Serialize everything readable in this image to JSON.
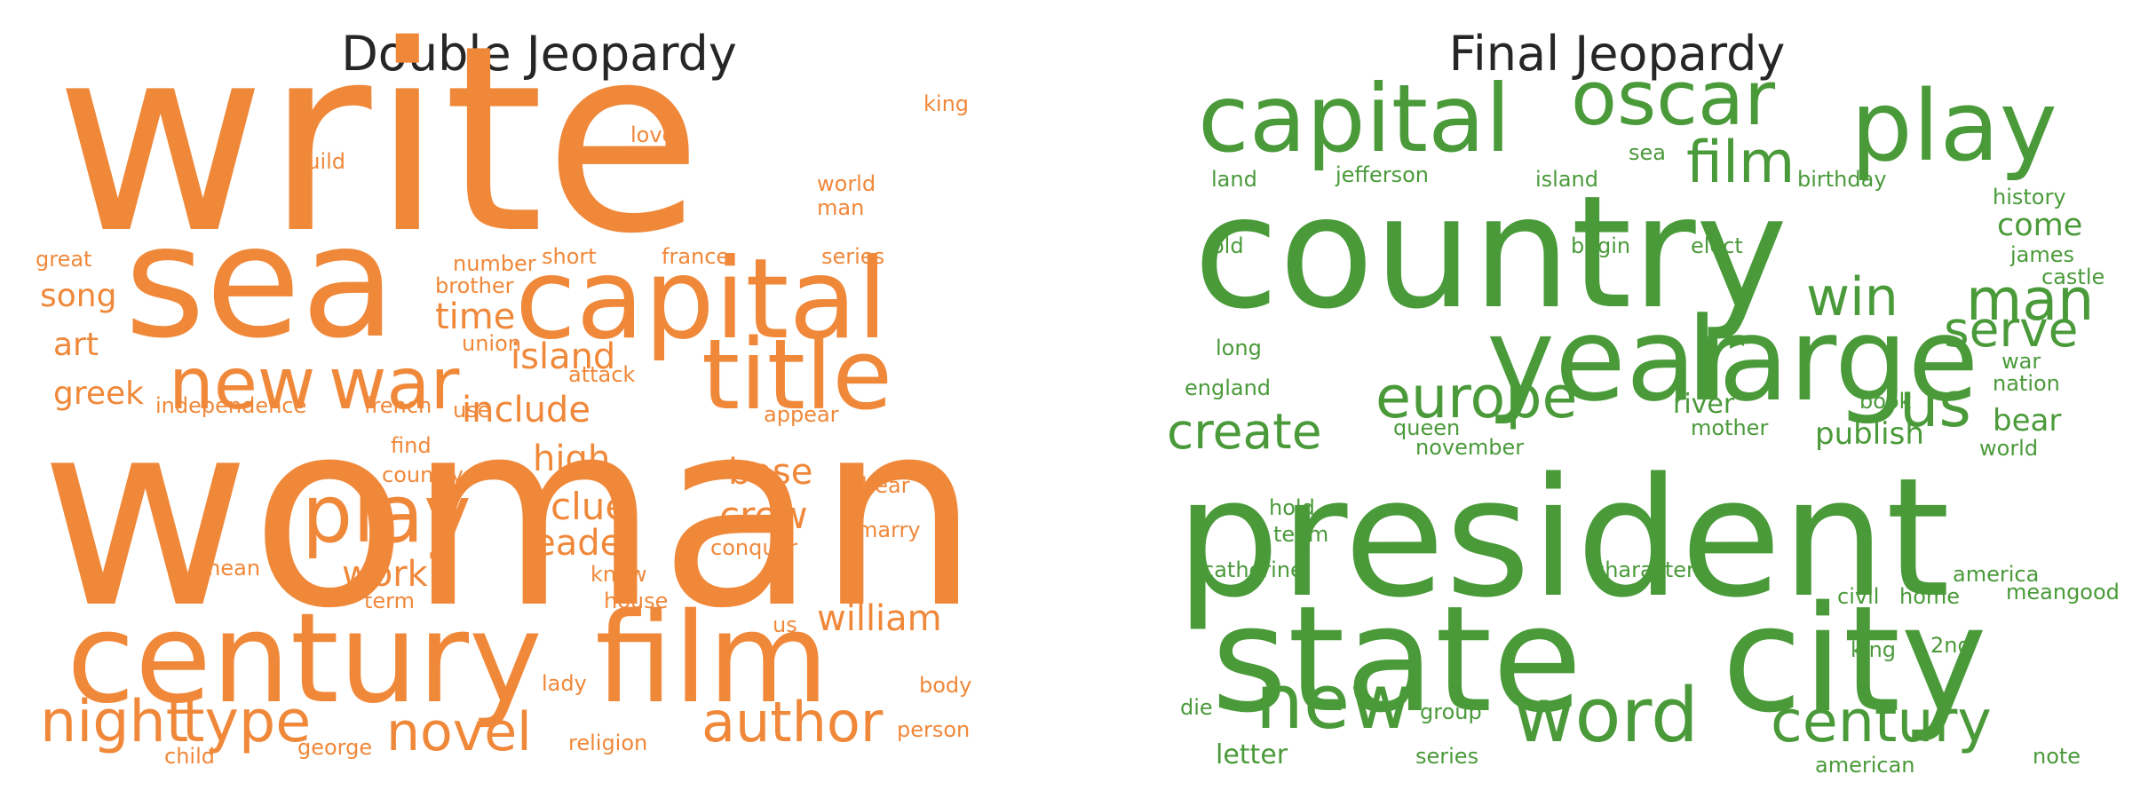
{
  "panels": [
    {
      "title": "Double Jeopardy",
      "color": "#f0883a",
      "words": [
        "woman",
        "write",
        "sea",
        "capital",
        "title",
        "new",
        "war",
        "century",
        "film",
        "play",
        "night",
        "type",
        "novel",
        "author",
        "island",
        "include",
        "high",
        "base",
        "clue",
        "crew",
        "leader",
        "work",
        "william",
        "time",
        "greek",
        "art",
        "song",
        "great",
        "independence",
        "french",
        "union",
        "use",
        "attack",
        "appear",
        "number",
        "brother",
        "short",
        "france",
        "series",
        "love",
        "king",
        "build",
        "world",
        "man",
        "find",
        "country",
        "hear",
        "marry",
        "mean",
        "term",
        "know",
        "house",
        "conquer",
        "us",
        "lady",
        "body",
        "child",
        "george",
        "religion",
        "person"
      ]
    },
    {
      "title": "Final Jeopardy",
      "color": "#4a9a3a",
      "words": [
        "capital",
        "oscar",
        "play",
        "country",
        "year",
        "large",
        "film",
        "win",
        "man",
        "europe",
        "us",
        "serve",
        "create",
        "president",
        "state",
        "city",
        "new",
        "word",
        "century",
        "come",
        "james",
        "castle",
        "history",
        "birthday",
        "sea",
        "island",
        "jefferson",
        "land",
        "old",
        "begin",
        "elect",
        "long",
        "england",
        "river",
        "book",
        "mother",
        "queen",
        "november",
        "publish",
        "bear",
        "world",
        "nation",
        "war",
        "hold",
        "team",
        "catherine",
        "character",
        "america",
        "civil",
        "home",
        "meangood",
        "king",
        "2nd",
        "die",
        "group",
        "letter",
        "series",
        "american",
        "note"
      ]
    }
  ]
}
